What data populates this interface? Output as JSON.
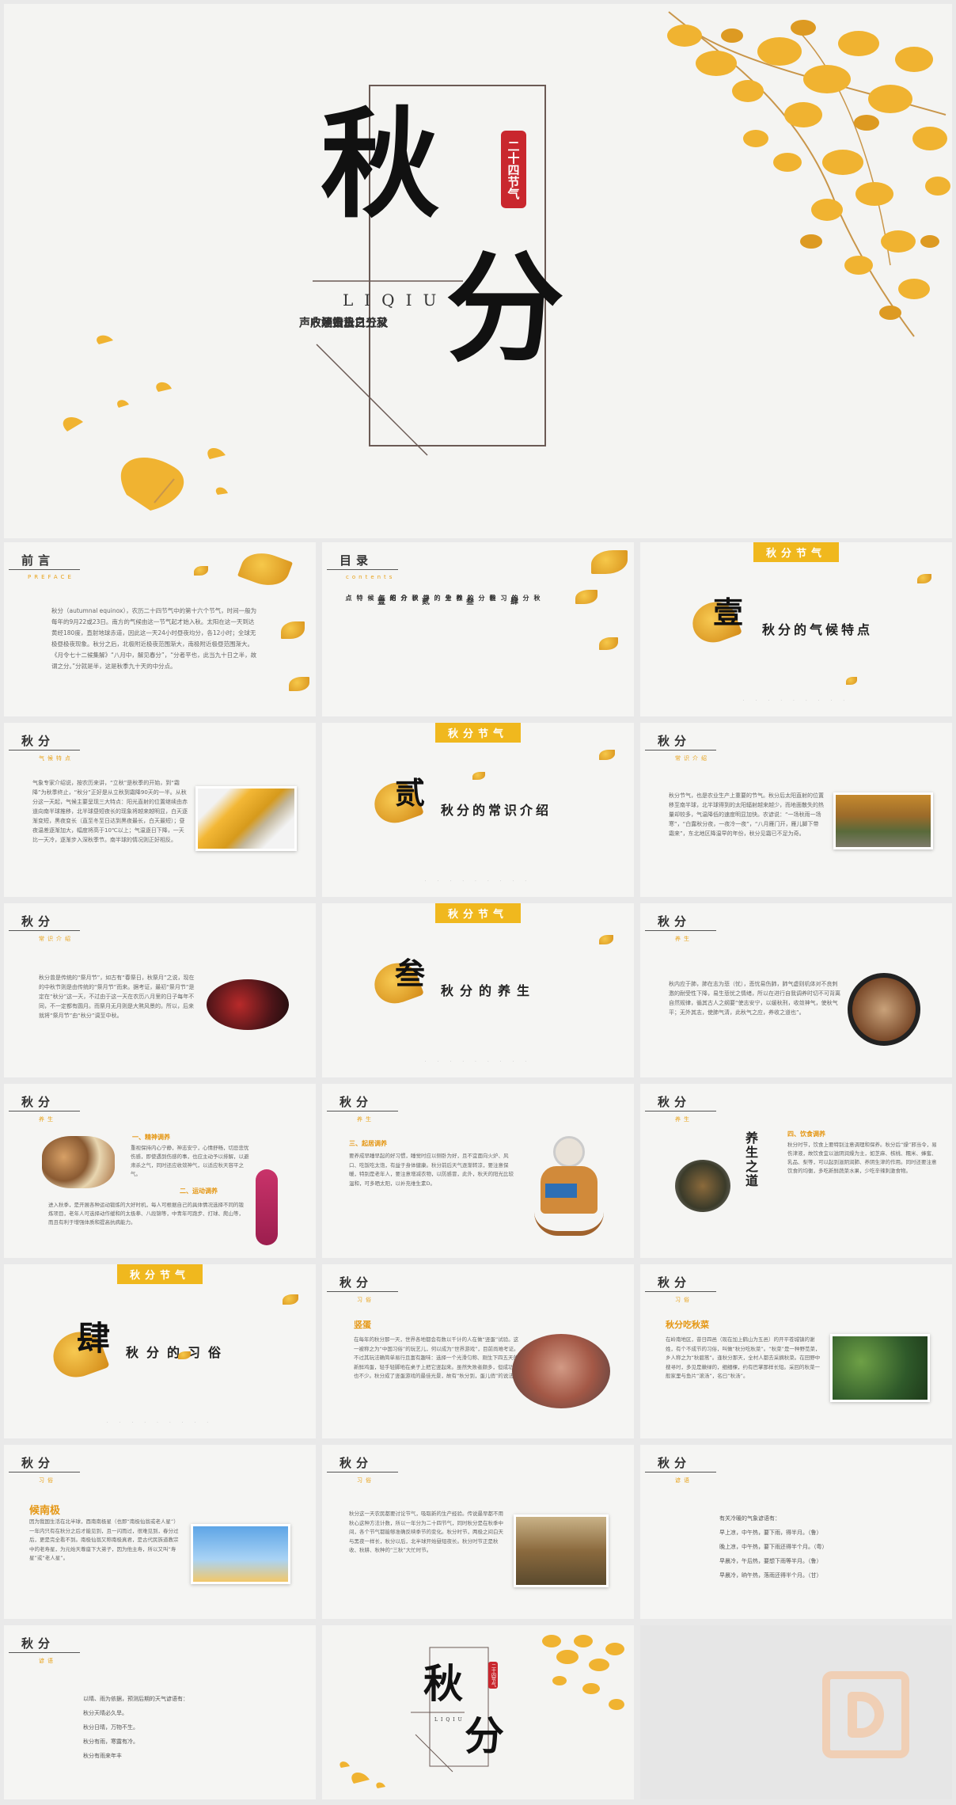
{
  "hero": {
    "char_qiu": "秋",
    "char_fen": "分",
    "pinyin": "LIQIU",
    "seal": "二十四节气",
    "poem": [
      "秋分之日雷始收声",
      "又五日蛰虫坯户",
      "又五日水始涸"
    ]
  },
  "s_preface": {
    "title": "前言",
    "sub": "PREFACE",
    "text": "秋分（autumnal equinox），农历二十四节气中的第十六个节气，时间一般为每年的9月22或23日。南方的气候由这一节气起才始入秋。太阳在这一天到达黄经180度，直射地球赤道，因此这一天24小时昼夜均分，各12小时；全球无极昼极夜现象。秋分之后，北极附近极夜范围渐大，南极附近极昼范围渐大。《月令七十二候集解》“八月中，解见春分”，“分者平也，此当九十日之半，故谓之分。”分就是半，这是秋季九十天的中分点。"
  },
  "s_toc": {
    "title": "目录",
    "sub": "contents",
    "nums": [
      "壹",
      "贰",
      "叁",
      "肆"
    ],
    "items": [
      "秋分的气候特点",
      "秋分的常识介绍",
      "秋分的养生",
      "秋分的习俗"
    ]
  },
  "s_sec1": {
    "tab": "秋分节气",
    "num": "壹",
    "title": "秋分的气候特点",
    "dots": "· · · · · · · · ·"
  },
  "s_climate": {
    "title": "秋分",
    "sub": "气候特点",
    "text": "气象专家介绍说，按农历来讲，“立秋”是秋季的开始，到“霜降”为秋季终止，“秋分”正好是从立秋到霜降90天的一半。从秋分这一天起，气候主要呈现三大特点：阳光直射的位置继续由赤道向南半球推移，北半球昼短夜长的现象将越来越明显，白天逐渐变短，黑夜变长（直至冬至日达到黑夜最长，白天最短）；昼夜温差逐渐加大，幅度将高于10℃以上；气温逐日下降，一天比一天冷，逐渐步入深秋季节。南半球的情况则正好相反。"
  },
  "s_sec2": {
    "tab": "秋分节气",
    "num": "贰",
    "title": "秋分的常识介绍",
    "dots": "· · · · · · · · ·"
  },
  "s_common": {
    "title": "秋分",
    "sub": "常识介绍",
    "text": "秋分节气，也是农业生产上重要的节气。秋分后太阳直射的位置移至南半球，北半球得到的太阳辐射越来越少，而地面散失的热量却较多，气温降低的速度明显加快。农谚说：“一场秋雨一场寒”，“白露秋分夜，一夜冷一夜”，“八月雁门开，雁儿脚下带霜来”，东北地区降温早的年份，秋分见霜已不足为奇。"
  },
  "s_common2": {
    "title": "秋分",
    "sub": "常识介绍",
    "text": "秋分曾是传统的“祭月节”，如古有“春祭日，秋祭月”之说，现在的中秋节则是由传统的“祭月节”而来。据考证，最初“祭月节”是定在“秋分”这一天，不过由于这一天在农历八月里的日子每年不同，不一定都有圆月。而祭月无月则是大煞风景的。所以，后来就将“祭月节”由“秋分”调至中秋。"
  },
  "s_sec3": {
    "tab": "秋分节气",
    "num": "叁",
    "title": "秋分的养生",
    "dots": "· · · · · · · · ·"
  },
  "s_health1": {
    "title": "秋分",
    "sub": "养生",
    "text": "秋内应于肺，肺在志为悲（忧），悲忧易伤肺，肺气虚则机体对不良刺激的耐受性下降，易生悲忧之情绪，所以在进行自我调养时切不可背离自然规律，循其古人之纲要“使志安宁，以缓秋刑，收敛神气，使秋气平；无外其志，使肺气清，此秋气之应，养收之道也”。"
  },
  "s_health2": {
    "title": "秋分",
    "sub": "养生",
    "h1": "一、精神调养",
    "t1": "重视保持内心宁静，神志安宁，心情舒畅，切忌悲忧伤感，即使遇到伤感的事，也应主动予以排解，以避肃杀之气，同时还应收敛神气，以适应秋天容平之气。",
    "h2": "二、运动调养",
    "t2": "进入秋季，是开展各种运动锻炼的大好时机，每人可根据自己的具体情况选择不同的锻炼项目，老年人可选择动作缓和的太极拳、八段锦等，中青年可跑步、打球、爬山等，而且有利于增强体质和提高抗病能力。"
  },
  "s_health3": {
    "title": "秋分",
    "sub": "养生",
    "h": "三、起居调养",
    "t": "要养成早睡早起的好习惯，睡觉时应以侧卧为好，且不宜面向火炉、风口、吃饭吃太饱，有益于身体健康。秋分前后天气逐渐转凉，要注意保暖，特别是老年人，要注意增减衣物，以防感冒，此外，秋天的阳光比较温和，可多晒太阳，以补充维生素D。"
  },
  "s_health4": {
    "title": "秋分",
    "sub": "养生",
    "h": "四、饮食调养",
    "banner": "养生之道",
    "t": "秋分时节，饮食上要特别注意调理和保养。秋分后“燥”邪当令，易伤津液，故饮食宜以滋阴润燥为主，如芝麻、核桃、糯米、蜂蜜、乳品、梨等，可以起到滋阴润肺、养阴生津的作用。同时还要注意饮食的均衡，多吃新鲜蔬菜水果，少吃辛辣刺激食物。"
  },
  "s_sec4": {
    "tab": "秋分节气",
    "num": "肆",
    "title": "秋分的习俗",
    "dots": "· · · · · · · · ·"
  },
  "s_custom1": {
    "title": "秋分",
    "sub": "习俗",
    "h": "竖蛋",
    "t": "在每年的秋分那一天，世界各地都会有数以千计的人在做“竖蛋”试验。这一被称之为“中国习俗”的玩艺儿，何以成为“世界游戏”，目前尚难考证。不过其玩法确简单易行且富有趣味：选择一个光滑匀称、刚生下四五天的新鲜鸡蛋，轻手轻脚地在桌子上把它竖起来。虽然失败者颇多，但成功者也不少。秋分成了竖蛋游戏的最佳光景，故有“秋分到，蛋儿俏”的说法。"
  },
  "s_custom2": {
    "title": "秋分",
    "sub": "习俗",
    "h": "秋分吃秋菜",
    "t": "在岭南地区，昔日四邑（现在加上鹤山为五邑）的开平苍城镇的谢姓，有个不成节的习俗，叫做“秋分吃秋菜”。“秋菜”是一种野苋菜，乡人称之为“秋碧蒿”。逢秋分那天，全村人都去采摘秋菜。在田野中搜寻时，多见是嫩绿的，细细棵，约有巴掌那样长短。采回的秋菜一般家里与鱼片“滚汤”，名曰“秋汤”。"
  },
  "s_custom3": {
    "title": "秋分",
    "sub": "习俗",
    "h": "候南极",
    "t": "因为我国生活在北半球，酉南南极星（也即“南极仙翁或老人星”）一年内只有在秋分之后才能见到，且一闪而过，很难见到，春分过后，更是完全看不到。南极仙翁又称南极真君，是古代民族道教宗中的老寿星，为元始天尊座下大弟子，因为他主寿，所以又叫“寿星”或“老人星”。"
  },
  "s_custom4": {
    "title": "秋分",
    "sub": "习俗",
    "t": "秋分这一天农民都要讨论节气，吸取新的生产经验。传说最早都不用秋心这种方法计数，所以一年分为二十四节气，同时秋分是在秋季中间，各个节气都能够准确反映季节的变化。秋分时节，两极之间白天与黑夜一样长，秋分以后，北半球开始昼短夜长。秋分时节正是秋收、秋耕、秋种的“三秋”大忙时节。"
  },
  "s_proverb1": {
    "title": "秋分",
    "sub": "谚语",
    "intro": "有关冷暖的气象谚语有：",
    "lines": [
      "早上凉，中午热，要下雨，得半月。（鲁）",
      "晚上凉，中午热，要下雨还得半个月。（粤）",
      "早晨冷，午后热，要想下雨等半月。（鲁）",
      "早晨冷，晌午热，落雨还得半个月。（甘）"
    ]
  },
  "s_proverb2": {
    "title": "秋分",
    "sub": "谚语",
    "lines": [
      "以晴、雨为依据，预测后期的天气谚语有：",
      "秋分天晴必久旱。",
      "秋分日晴，万物不生。",
      "秋分有雨，寒露有冷。",
      "秋分有雨来年丰"
    ]
  },
  "s_end": {
    "char_qiu": "秋",
    "char_fen": "分",
    "pinyin": "LIQIU",
    "seal": "二十四节气"
  }
}
